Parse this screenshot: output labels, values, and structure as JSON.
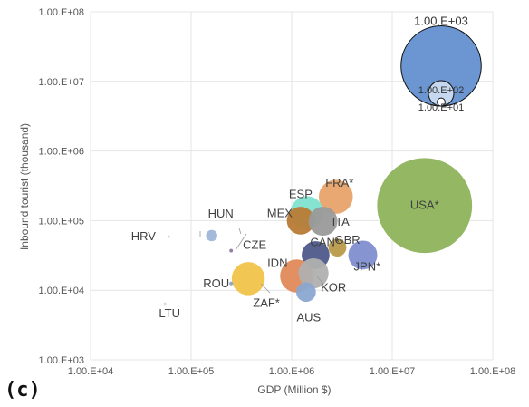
{
  "panel_label": "(c)",
  "chart_data": {
    "type": "scatter",
    "title": "",
    "xlabel": "GDP (Million $)",
    "ylabel": "Inbound tourist  (thousand)",
    "xscale": "log",
    "yscale": "log",
    "xlim": [
      10000,
      100000000
    ],
    "ylim": [
      1000,
      100000000
    ],
    "grid": true,
    "xticks": [
      {
        "value": 10000,
        "label": "1.00.E+04"
      },
      {
        "value": 100000,
        "label": "1.00.E+05"
      },
      {
        "value": 1000000,
        "label": "1.00.E+06"
      },
      {
        "value": 10000000,
        "label": "1.00.E+07"
      },
      {
        "value": 100000000,
        "label": "1.00.E+08"
      }
    ],
    "yticks": [
      {
        "value": 1000,
        "label": "1.00.E+03"
      },
      {
        "value": 10000,
        "label": "1.00.E+04"
      },
      {
        "value": 100000,
        "label": "1.00.E+05"
      },
      {
        "value": 1000000,
        "label": "1.00.E+06"
      },
      {
        "value": 10000000,
        "label": "1.00.E+07"
      },
      {
        "value": 100000000,
        "label": "1.00.E+08"
      }
    ],
    "points": [
      {
        "label": "USA*",
        "x": 21000000,
        "y": 165000,
        "size": 1400,
        "color": "#8db35a"
      },
      {
        "label": "FRA*",
        "x": 2750000,
        "y": 220000,
        "size": 180,
        "color": "#e8a36a"
      },
      {
        "label": "ESP",
        "x": 1420000,
        "y": 130000,
        "size": 170,
        "color": "#7fe0cf"
      },
      {
        "label": "MEX",
        "x": 1230000,
        "y": 100000,
        "size": 120,
        "color": "#b87a35"
      },
      {
        "label": "ITA",
        "x": 2050000,
        "y": 98000,
        "size": 130,
        "color": "#9a9a9a"
      },
      {
        "label": "GBR",
        "x": 2850000,
        "y": 41000,
        "size": 50,
        "color": "#b89a4a"
      },
      {
        "label": "CAN*",
        "x": 1730000,
        "y": 32000,
        "size": 120,
        "color": "#4e5a8a"
      },
      {
        "label": "JPN*",
        "x": 5100000,
        "y": 32000,
        "size": 130,
        "color": "#7f8fd0"
      },
      {
        "label": "IDN",
        "x": 1120000,
        "y": 16000,
        "size": 170,
        "color": "#e08a5a"
      },
      {
        "label": "KOR",
        "x": 1650000,
        "y": 17500,
        "size": 140,
        "color": "#b0b0b0"
      },
      {
        "label": "AUS",
        "x": 1390000,
        "y": 9400,
        "size": 60,
        "color": "#8aa8d0"
      },
      {
        "label": "ZAF*",
        "x": 370000,
        "y": 14700,
        "size": 170,
        "color": "#f0c34a"
      },
      {
        "label": "HRV",
        "x": 60000,
        "y": 59000,
        "size": 1,
        "color": "#c8d4ea"
      },
      {
        "label": "HUN",
        "x": 160000,
        "y": 61000,
        "size": 20,
        "color": "#9fb6d8"
      },
      {
        "label": "CZE",
        "x": 250000,
        "y": 37000,
        "size": 2,
        "color": "#8c7aa0"
      },
      {
        "label": "ROU",
        "x": 250000,
        "y": 12500,
        "size": 2,
        "color": "#8aa0c8"
      },
      {
        "label": "LTU",
        "x": 55000,
        "y": 6400,
        "size": 1,
        "color": "#d0d8e6"
      }
    ],
    "size_legend": [
      {
        "label": "1.00.E+03",
        "size": 1000
      },
      {
        "label": "1.00.E+02",
        "size": 100
      },
      {
        "label": "1.00.E+01",
        "size": 10
      }
    ],
    "size_legend_color": "#6b96d2"
  }
}
